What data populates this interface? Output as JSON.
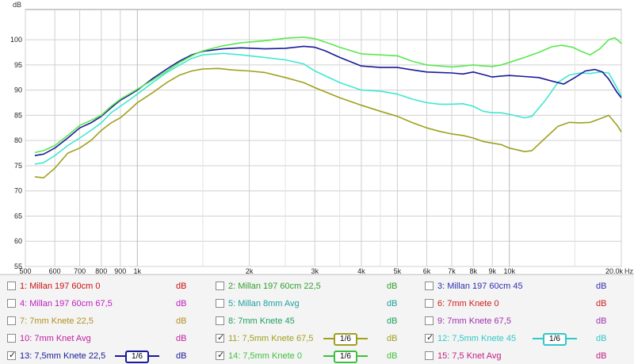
{
  "chart_data": {
    "type": "line",
    "ylabel": "dB",
    "xunit": "Hz",
    "ylim": [
      55,
      106
    ],
    "xlim": [
      500,
      20000
    ],
    "xscale": "log",
    "grid": true,
    "y_ticks": [
      {
        "value": 55,
        "label": "55"
      },
      {
        "value": 60,
        "label": "60"
      },
      {
        "value": 65,
        "label": "65"
      },
      {
        "value": 70,
        "label": "70"
      },
      {
        "value": 75,
        "label": "75"
      },
      {
        "value": 80,
        "label": "80"
      },
      {
        "value": 85,
        "label": "85"
      },
      {
        "value": 90,
        "label": "90"
      },
      {
        "value": 95,
        "label": "95"
      },
      {
        "value": 100,
        "label": "100"
      }
    ],
    "x_ticks": [
      {
        "value": 500,
        "label": "500"
      },
      {
        "value": 600,
        "label": "600"
      },
      {
        "value": 700,
        "label": "700"
      },
      {
        "value": 800,
        "label": "800"
      },
      {
        "value": 900,
        "label": "900"
      },
      {
        "value": 1000,
        "label": "1k"
      },
      {
        "value": 2000,
        "label": "2k"
      },
      {
        "value": 3000,
        "label": "3k"
      },
      {
        "value": 4000,
        "label": "4k"
      },
      {
        "value": 5000,
        "label": "5k"
      },
      {
        "value": 6000,
        "label": "6k"
      },
      {
        "value": 7000,
        "label": "7k"
      },
      {
        "value": 8000,
        "label": "8k"
      },
      {
        "value": 9000,
        "label": "9k"
      },
      {
        "value": 10000,
        "label": "10k"
      },
      {
        "value": 20000,
        "label": "20,0k"
      }
    ],
    "minor_x_ticks": [
      1500,
      2500,
      3500,
      4500,
      15000
    ],
    "series": [
      {
        "name": "11: 7,5mm Knete 67,5",
        "color": "#a0a020",
        "points": [
          [
            530,
            72.8
          ],
          [
            560,
            72.6
          ],
          [
            600,
            74.5
          ],
          [
            650,
            77.5
          ],
          [
            700,
            78.5
          ],
          [
            750,
            80
          ],
          [
            800,
            82
          ],
          [
            850,
            83.5
          ],
          [
            900,
            84.5
          ],
          [
            950,
            86
          ],
          [
            1000,
            87.5
          ],
          [
            1100,
            89.5
          ],
          [
            1200,
            91.5
          ],
          [
            1300,
            93
          ],
          [
            1400,
            93.8
          ],
          [
            1500,
            94.2
          ],
          [
            1650,
            94.3
          ],
          [
            1800,
            94
          ],
          [
            2000,
            93.8
          ],
          [
            2200,
            93.5
          ],
          [
            2500,
            92.5
          ],
          [
            2800,
            91.5
          ],
          [
            3000,
            90.5
          ],
          [
            3500,
            88.5
          ],
          [
            4000,
            87
          ],
          [
            4500,
            85.8
          ],
          [
            5000,
            84.8
          ],
          [
            5500,
            83.5
          ],
          [
            6000,
            82.5
          ],
          [
            6500,
            81.8
          ],
          [
            7000,
            81.3
          ],
          [
            7500,
            81
          ],
          [
            8000,
            80.5
          ],
          [
            8500,
            79.8
          ],
          [
            9000,
            79.5
          ],
          [
            9500,
            79.2
          ],
          [
            10000,
            78.5
          ],
          [
            11000,
            77.8
          ],
          [
            11500,
            78
          ],
          [
            12500,
            80.5
          ],
          [
            13500,
            82.8
          ],
          [
            14500,
            83.6
          ],
          [
            15500,
            83.5
          ],
          [
            16500,
            83.6
          ],
          [
            17500,
            84.3
          ],
          [
            18500,
            85
          ],
          [
            19500,
            83
          ],
          [
            20000,
            81.7
          ]
        ]
      },
      {
        "name": "12: 7,5mm Knete 45",
        "color": "#40e8d0",
        "points": [
          [
            530,
            75.3
          ],
          [
            560,
            75.6
          ],
          [
            600,
            77
          ],
          [
            650,
            79
          ],
          [
            700,
            80.5
          ],
          [
            750,
            82
          ],
          [
            800,
            83.5
          ],
          [
            850,
            85.5
          ],
          [
            900,
            86.8
          ],
          [
            950,
            88
          ],
          [
            1000,
            89.2
          ],
          [
            1100,
            91.5
          ],
          [
            1200,
            93.5
          ],
          [
            1300,
            95
          ],
          [
            1400,
            96.3
          ],
          [
            1500,
            97
          ],
          [
            1700,
            97.3
          ],
          [
            1900,
            97
          ],
          [
            2200,
            96.5
          ],
          [
            2500,
            96
          ],
          [
            2800,
            95.2
          ],
          [
            3000,
            93.8
          ],
          [
            3500,
            91.5
          ],
          [
            4000,
            90
          ],
          [
            4500,
            89.8
          ],
          [
            5000,
            89.2
          ],
          [
            5500,
            88.2
          ],
          [
            6000,
            87.5
          ],
          [
            6500,
            87.2
          ],
          [
            7000,
            87.2
          ],
          [
            7500,
            87.3
          ],
          [
            8000,
            86.8
          ],
          [
            8500,
            85.8
          ],
          [
            9000,
            85.5
          ],
          [
            9500,
            85.5
          ],
          [
            10000,
            85.2
          ],
          [
            11000,
            84.5
          ],
          [
            11500,
            84.8
          ],
          [
            12500,
            88
          ],
          [
            13500,
            91.5
          ],
          [
            14500,
            93
          ],
          [
            15500,
            93.4
          ],
          [
            16500,
            93.3
          ],
          [
            17500,
            93.6
          ],
          [
            18500,
            93.4
          ],
          [
            19300,
            91
          ],
          [
            20000,
            88.8
          ]
        ]
      },
      {
        "name": "13: 7,5mm Knete 22,5",
        "color": "#1a1a9a",
        "points": [
          [
            530,
            77
          ],
          [
            560,
            77.3
          ],
          [
            600,
            78.5
          ],
          [
            650,
            80.5
          ],
          [
            700,
            82.5
          ],
          [
            750,
            83.5
          ],
          [
            800,
            84.8
          ],
          [
            850,
            86.5
          ],
          [
            900,
            88
          ],
          [
            950,
            89
          ],
          [
            1000,
            90
          ],
          [
            1100,
            92.3
          ],
          [
            1200,
            94.2
          ],
          [
            1300,
            95.8
          ],
          [
            1400,
            97
          ],
          [
            1500,
            97.7
          ],
          [
            1700,
            98.2
          ],
          [
            1900,
            98.4
          ],
          [
            2200,
            98.2
          ],
          [
            2500,
            98.3
          ],
          [
            2800,
            98.7
          ],
          [
            3000,
            98.5
          ],
          [
            3200,
            97.8
          ],
          [
            3500,
            96.5
          ],
          [
            4000,
            94.8
          ],
          [
            4500,
            94.5
          ],
          [
            5000,
            94.5
          ],
          [
            5500,
            94
          ],
          [
            6000,
            93.6
          ],
          [
            6500,
            93.5
          ],
          [
            7000,
            93.4
          ],
          [
            7500,
            93.2
          ],
          [
            8000,
            93.6
          ],
          [
            8500,
            93.1
          ],
          [
            9000,
            92.6
          ],
          [
            9500,
            92.8
          ],
          [
            10000,
            92.9
          ],
          [
            11000,
            92.7
          ],
          [
            12000,
            92.5
          ],
          [
            13000,
            91.8
          ],
          [
            14000,
            91.2
          ],
          [
            15000,
            92.5
          ],
          [
            16000,
            93.8
          ],
          [
            17000,
            94.1
          ],
          [
            17800,
            93.6
          ],
          [
            18500,
            92.2
          ],
          [
            19500,
            89.5
          ],
          [
            20000,
            88.5
          ]
        ]
      },
      {
        "name": "14: 7,5mm Knete 0",
        "color": "#5ae850",
        "points": [
          [
            530,
            77.6
          ],
          [
            560,
            78
          ],
          [
            600,
            79
          ],
          [
            650,
            81
          ],
          [
            700,
            83
          ],
          [
            750,
            84
          ],
          [
            800,
            85
          ],
          [
            850,
            86.8
          ],
          [
            900,
            88.2
          ],
          [
            950,
            89.2
          ],
          [
            1000,
            90.2
          ],
          [
            1100,
            92
          ],
          [
            1200,
            93.8
          ],
          [
            1300,
            95.5
          ],
          [
            1400,
            96.8
          ],
          [
            1500,
            97.8
          ],
          [
            1700,
            98.8
          ],
          [
            1900,
            99.4
          ],
          [
            2200,
            99.8
          ],
          [
            2500,
            100.3
          ],
          [
            2800,
            100.5
          ],
          [
            3000,
            100.2
          ],
          [
            3300,
            99.2
          ],
          [
            3500,
            98.5
          ],
          [
            4000,
            97.2
          ],
          [
            4500,
            97
          ],
          [
            5000,
            96.8
          ],
          [
            5500,
            95.7
          ],
          [
            6000,
            95
          ],
          [
            6500,
            94.8
          ],
          [
            7000,
            94.6
          ],
          [
            7500,
            94.8
          ],
          [
            8000,
            95
          ],
          [
            8500,
            94.8
          ],
          [
            9000,
            94.7
          ],
          [
            9500,
            95
          ],
          [
            10000,
            95.5
          ],
          [
            11000,
            96.5
          ],
          [
            12000,
            97.5
          ],
          [
            13000,
            98.6
          ],
          [
            13800,
            98.9
          ],
          [
            14800,
            98.5
          ],
          [
            15500,
            97.8
          ],
          [
            16500,
            97
          ],
          [
            17500,
            98.2
          ],
          [
            18500,
            100
          ],
          [
            19200,
            100.4
          ],
          [
            19800,
            99.6
          ],
          [
            20000,
            99.2
          ]
        ]
      }
    ]
  },
  "legend": {
    "unit": "dB",
    "items": [
      {
        "label": "1: Millan 197 60cm 0",
        "color": "#cc1010",
        "checked": false,
        "smoothing": ""
      },
      {
        "label": "2: Millan 197 60cm 22,5",
        "color": "#30a030",
        "checked": false,
        "smoothing": ""
      },
      {
        "label": "3: Millan 197 60cm 45",
        "color": "#3030b0",
        "checked": false,
        "smoothing": ""
      },
      {
        "label": "4: Millan 197 60cm 67,5",
        "color": "#c020c0",
        "checked": false,
        "smoothing": ""
      },
      {
        "label": "5: Millan 8mm Avg",
        "color": "#20a0a0",
        "checked": false,
        "smoothing": ""
      },
      {
        "label": "6: 7mm Knete 0",
        "color": "#d02020",
        "checked": false,
        "smoothing": ""
      },
      {
        "label": "7: 7mm Knete 22,5",
        "color": "#b09020",
        "checked": false,
        "smoothing": ""
      },
      {
        "label": "8: 7mm Knete 45",
        "color": "#20a060",
        "checked": false,
        "smoothing": ""
      },
      {
        "label": "9: 7mm Knete 67,5",
        "color": "#a030b0",
        "checked": false,
        "smoothing": ""
      },
      {
        "label": "10: 7mm Knet Avg",
        "color": "#c020a0",
        "checked": false,
        "smoothing": ""
      },
      {
        "label": "11: 7,5mm Knete 67,5",
        "color": "#a0a020",
        "checked": true,
        "smoothing": "1/6"
      },
      {
        "label": "12: 7,5mm Knete 45",
        "color": "#30c8c8",
        "checked": true,
        "smoothing": "1/6"
      },
      {
        "label": "13: 7,5mm Knete 22,5",
        "color": "#1a1a9a",
        "checked": true,
        "smoothing": "1/6"
      },
      {
        "label": "14: 7,5mm Knete 0",
        "color": "#40c040",
        "checked": true,
        "smoothing": "1/6"
      },
      {
        "label": "15: 7,5 Knet Avg",
        "color": "#c02080",
        "checked": false,
        "smoothing": ""
      }
    ]
  }
}
